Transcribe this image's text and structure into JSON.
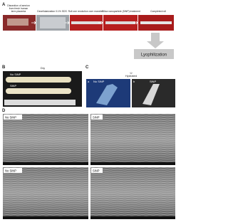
{
  "panel_a": {
    "label": "A",
    "steps": [
      "Dissection of amnion from fresh human term placenta",
      "Decellularization 0.1% SDS",
      "Roll one revolution over mandrel",
      "Silica nanoparticle (SiNP) treatment",
      "Completed roll"
    ],
    "final_step": "Lyophilization"
  },
  "panel_b": {
    "label": "B",
    "title": "Dry",
    "labels": [
      "No SiNP",
      "SiNP"
    ]
  },
  "panel_c": {
    "label": "C",
    "title": "Hydrated",
    "sub_labels": [
      "a",
      "b"
    ],
    "labels": [
      "No SiNP",
      "SiNP"
    ]
  },
  "panel_d": {
    "label": "D",
    "labels": [
      "No SiNP",
      "SiNP",
      "No SiNP",
      "SiNP"
    ]
  }
}
